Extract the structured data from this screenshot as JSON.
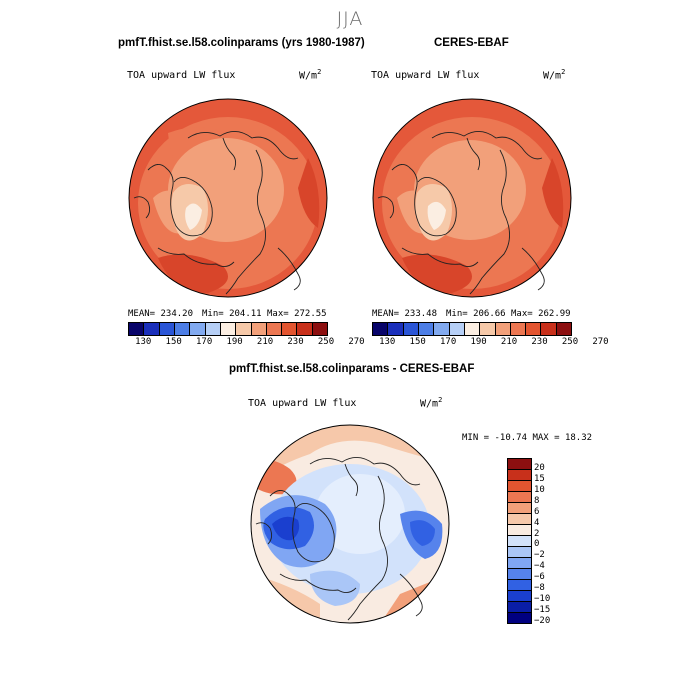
{
  "figure": {
    "season": "JJA"
  },
  "panels": {
    "model": {
      "title": "pmfT.fhist.se.l58.colinparams (yrs 1980-1987)",
      "variable": "TOA upward LW flux",
      "units_base": "W/m",
      "units_exp": "2",
      "mean_text": "MEAN= 234.20",
      "min_text": "Min= 204.11",
      "max_text": "Max= 272.55"
    },
    "obs": {
      "title": "CERES-EBAF",
      "variable": "TOA upward LW flux",
      "units_base": "W/m",
      "units_exp": "2",
      "mean_text": "MEAN= 233.48",
      "min_text": "Min= 206.66",
      "max_text": "Max= 262.99"
    },
    "diff": {
      "title": "pmfT.fhist.se.l58.colinparams - CERES-EBAF",
      "variable": "TOA upward LW flux",
      "units_base": "W/m",
      "units_exp": "2",
      "minmax_text": "MIN = -10.74 MAX =  18.32"
    }
  },
  "colors": {
    "abs_scale": [
      "#08046a",
      "#1a2fbb",
      "#2a55d6",
      "#4d7ee6",
      "#82aaf0",
      "#b6cff6",
      "#fbeee2",
      "#f6c9a9",
      "#f2a07a",
      "#ec7752",
      "#e35530",
      "#c8301b",
      "#8c0f10"
    ],
    "diff_scale": [
      "#000080",
      "#0a1ea6",
      "#1a3fcf",
      "#3161e3",
      "#5683ec",
      "#80a6f3",
      "#aac6f7",
      "#d2e2fb",
      "#f9ebe1",
      "#f6c8aa",
      "#f2a07a",
      "#ec7752",
      "#e35530",
      "#c8301b",
      "#8c0f10"
    ],
    "coast": "#222222"
  },
  "chart_data": [
    {
      "type": "heatmap",
      "projection": "north-polar-stereographic",
      "title": "pmfT.fhist.se.l58.colinparams (yrs 1980-1987)",
      "variable": "TOA upward LW flux",
      "units": "W/m^2",
      "mean": 234.2,
      "min": 204.11,
      "max": 272.55,
      "colorbar_levels": [
        130,
        140,
        150,
        160,
        170,
        180,
        190,
        200,
        210,
        220,
        230,
        240,
        250,
        260,
        270
      ],
      "colorbar_tick_labels": [
        "130",
        "150",
        "170",
        "190",
        "210",
        "230",
        "250",
        "270"
      ]
    },
    {
      "type": "heatmap",
      "projection": "north-polar-stereographic",
      "title": "CERES-EBAF",
      "variable": "TOA upward LW flux",
      "units": "W/m^2",
      "mean": 233.48,
      "min": 206.66,
      "max": 262.99,
      "colorbar_levels": [
        130,
        140,
        150,
        160,
        170,
        180,
        190,
        200,
        210,
        220,
        230,
        240,
        250,
        260,
        270
      ],
      "colorbar_tick_labels": [
        "130",
        "150",
        "170",
        "190",
        "210",
        "230",
        "250",
        "270"
      ]
    },
    {
      "type": "heatmap",
      "projection": "north-polar-stereographic",
      "title": "pmfT.fhist.se.l58.colinparams - CERES-EBAF",
      "variable": "TOA upward LW flux",
      "units": "W/m^2",
      "min": -10.74,
      "max": 18.32,
      "colorbar_levels": [
        -20,
        -15,
        -10,
        -8,
        -6,
        -4,
        -2,
        0,
        2,
        4,
        6,
        8,
        10,
        15,
        20
      ],
      "colorbar_tick_labels": [
        "20",
        "15",
        "10",
        "8",
        "6",
        "4",
        "2",
        "0",
        "−2",
        "−4",
        "−6",
        "−8",
        "−10",
        "−15",
        "−20"
      ]
    }
  ]
}
